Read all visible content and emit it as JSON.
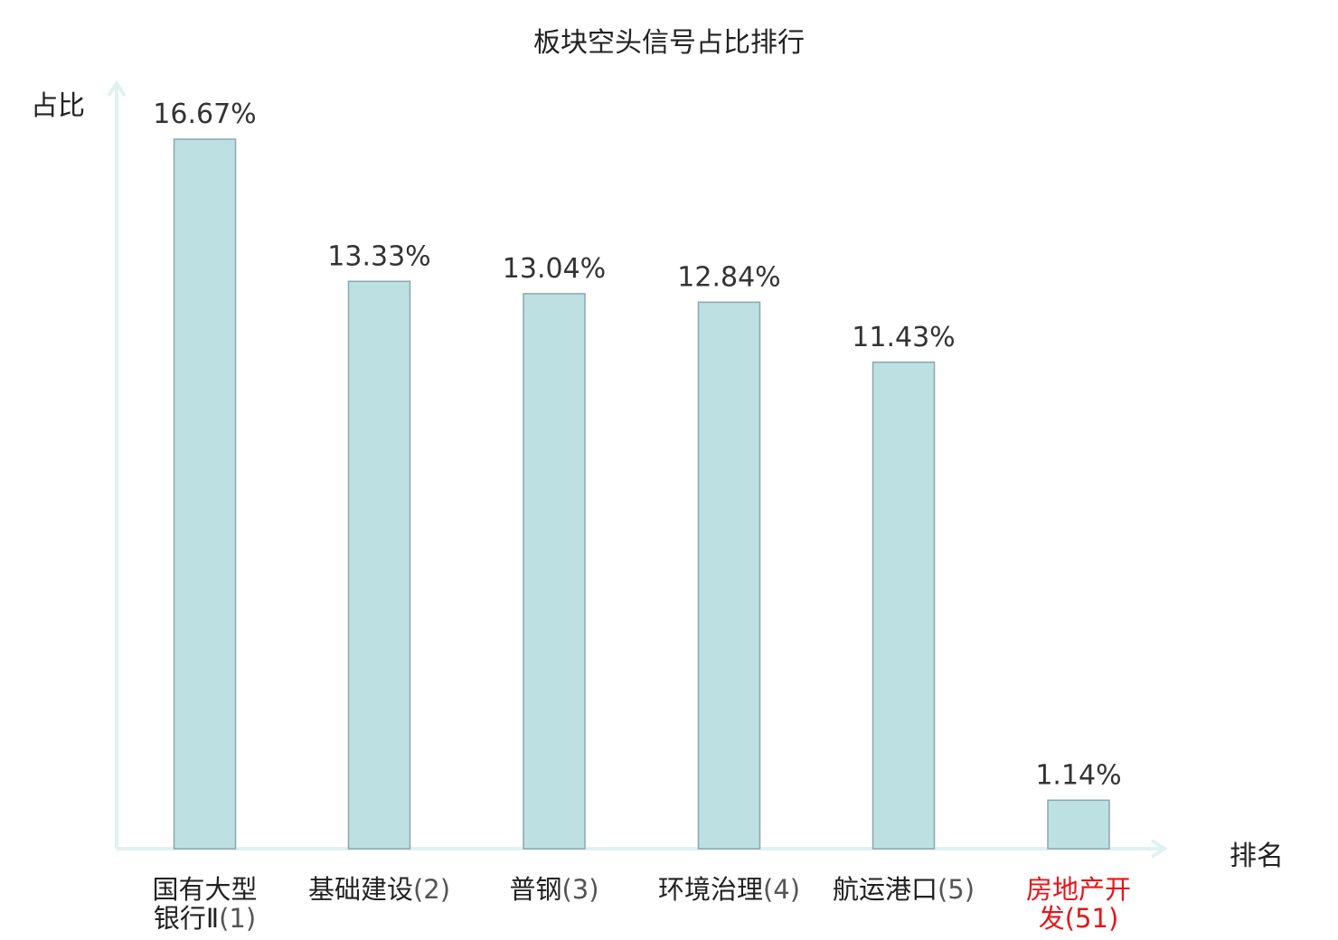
{
  "chart_data": {
    "type": "bar",
    "title": "板块空头信号占比排行",
    "ylabel": "占比",
    "xlabel": "排名",
    "categories": [
      {
        "name_lines": [
          "国有大型",
          "银行Ⅱ"
        ],
        "rank": "(1)",
        "highlight": false
      },
      {
        "name_lines": [
          "基础建设"
        ],
        "rank": "(2)",
        "highlight": false
      },
      {
        "name_lines": [
          "普钢"
        ],
        "rank": "(3)",
        "highlight": false
      },
      {
        "name_lines": [
          "环境治理"
        ],
        "rank": "(4)",
        "highlight": false
      },
      {
        "name_lines": [
          "航运港口"
        ],
        "rank": "(5)",
        "highlight": false
      },
      {
        "name_lines": [
          "房地产开",
          "发"
        ],
        "rank": "(51)",
        "highlight": true
      }
    ],
    "values": [
      16.67,
      13.33,
      13.04,
      12.84,
      11.43,
      1.14
    ],
    "value_labels": [
      "16.67%",
      "13.33%",
      "13.04%",
      "12.84%",
      "11.43%",
      "1.14%"
    ],
    "ylim": [
      0,
      18
    ],
    "grid": false,
    "legend": "none",
    "colors": {
      "bar_fill": "#bde0e2",
      "bar_stroke": "#8aa8aa",
      "axis": "#e0f2f0",
      "label_text": "#333333",
      "rank_text": "#555555",
      "highlight_text": "#e8141a"
    }
  }
}
